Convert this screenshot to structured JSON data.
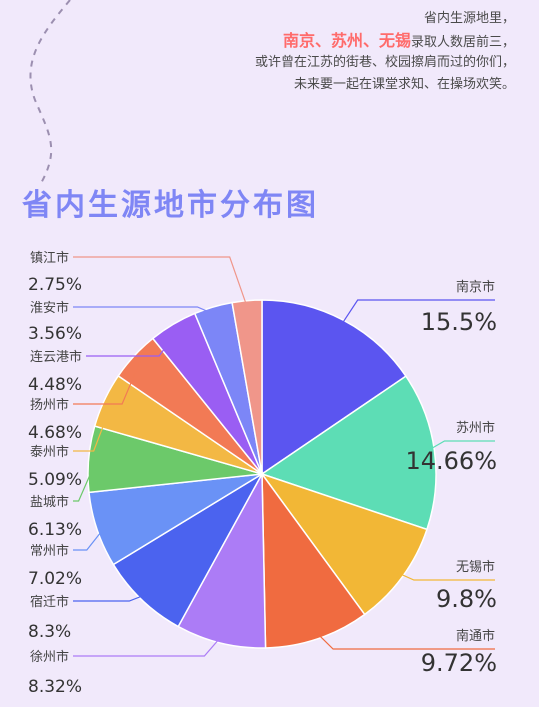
{
  "intro": {
    "line1": "省内生源地里，",
    "line2_highlight": "南京、苏州、无锡",
    "line2_rest": "录取人数居前三，",
    "line3": "或许曾在江苏的街巷、校园擦肩而过的你们，",
    "line4": "未来要一起在课堂求知、在操场欢笑。"
  },
  "chart_data": {
    "type": "pie",
    "title": "省内生源地市分布图",
    "slices": [
      {
        "name": "南京市",
        "label": "15.5%",
        "value": 15.5,
        "color": "#5b55f0"
      },
      {
        "name": "苏州市",
        "label": "14.66%",
        "value": 14.66,
        "color": "#5dddb5"
      },
      {
        "name": "无锡市",
        "label": "9.8%",
        "value": 9.8,
        "color": "#f2b736"
      },
      {
        "name": "南通市",
        "label": "9.72%",
        "value": 9.72,
        "color": "#f06b40"
      },
      {
        "name": "徐州市",
        "label": "8.32%",
        "value": 8.32,
        "color": "#ac7cf6"
      },
      {
        "name": "宿迁市",
        "label": "8.3%",
        "value": 8.3,
        "color": "#4b63ef"
      },
      {
        "name": "常州市",
        "label": "7.02%",
        "value": 7.02,
        "color": "#6a92f6"
      },
      {
        "name": "盐城市",
        "label": "6.13%",
        "value": 6.13,
        "color": "#6cc96a"
      },
      {
        "name": "泰州市",
        "label": "5.09%",
        "value": 5.09,
        "color": "#f3b844"
      },
      {
        "name": "扬州市",
        "label": "4.68%",
        "value": 4.68,
        "color": "#f27a55"
      },
      {
        "name": "连云港市",
        "label": "4.48%",
        "value": 4.48,
        "color": "#9a5ef3"
      },
      {
        "name": "淮安市",
        "label": "3.56%",
        "value": 3.56,
        "color": "#7c86f7"
      },
      {
        "name": "镇江市",
        "label": "2.75%",
        "value": 2.75,
        "color": "#f0968a"
      }
    ]
  }
}
